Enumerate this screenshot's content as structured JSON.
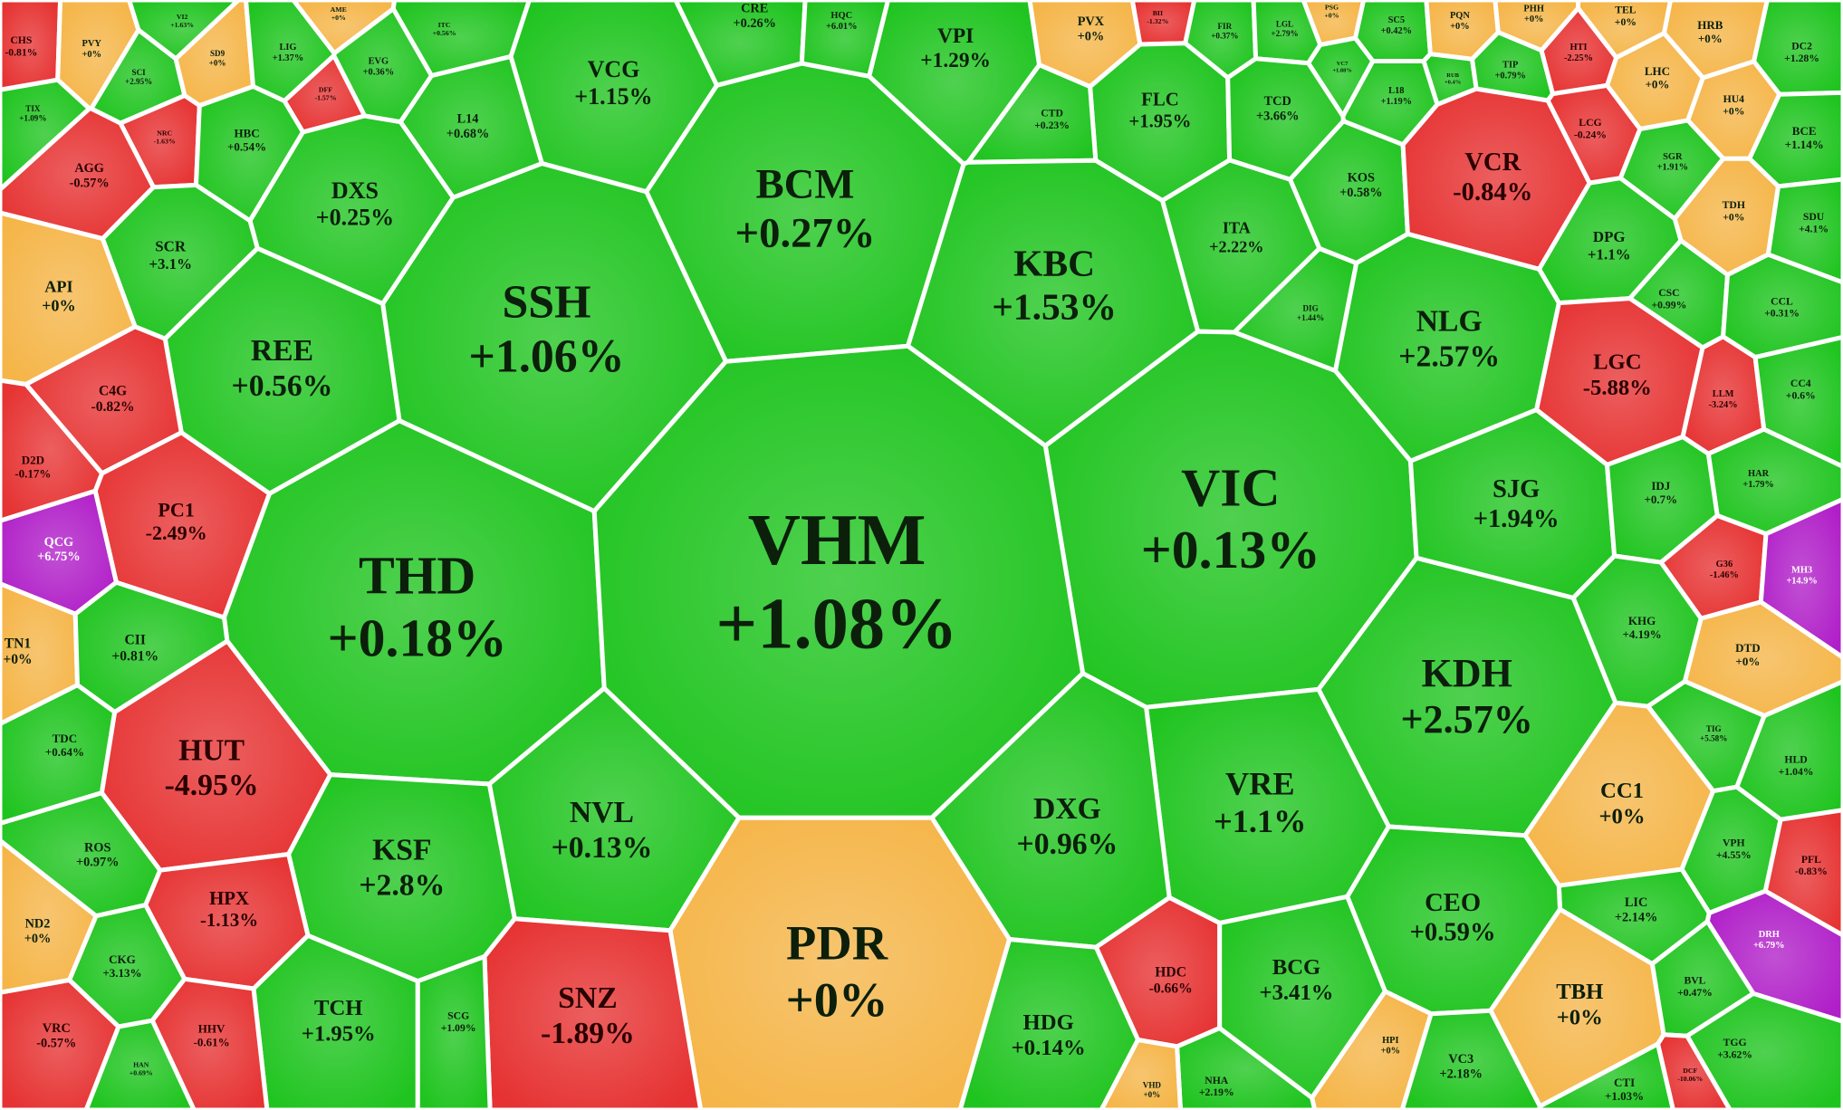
{
  "cells": [
    {
      "ticker": "CHS",
      "change": "-0.81%",
      "color": "#e63232"
    },
    {
      "ticker": "PVY",
      "change": "+0%",
      "color": "#f5b548"
    },
    {
      "ticker": "VI2",
      "change": "+1.63%",
      "color": "#1fc41f"
    },
    {
      "ticker": "AME",
      "change": "+0%",
      "color": "#f5b548"
    },
    {
      "ticker": "SCI",
      "change": "+2.95%",
      "color": "#1fc41f"
    },
    {
      "ticker": "SD9",
      "change": "+0%",
      "color": "#f5b548"
    },
    {
      "ticker": "LIG",
      "change": "+1.37%",
      "color": "#1fc41f"
    },
    {
      "ticker": "ITC",
      "change": "+0.56%",
      "color": "#1fc41f"
    },
    {
      "ticker": "EVG",
      "change": "+0.36%",
      "color": "#1fc41f"
    },
    {
      "ticker": "DFF",
      "change": "-1.57%",
      "color": "#e63232"
    },
    {
      "ticker": "TIX",
      "change": "+1.09%",
      "color": "#1fc41f"
    },
    {
      "ticker": "NRC",
      "change": "-1.63%",
      "color": "#e63232"
    },
    {
      "ticker": "HBC",
      "change": "+0.54%",
      "color": "#1fc41f"
    },
    {
      "ticker": "L14",
      "change": "+0.68%",
      "color": "#1fc41f"
    },
    {
      "ticker": "VCG",
      "change": "+1.15%",
      "color": "#1fc41f"
    },
    {
      "ticker": "CRE",
      "change": "+0.26%",
      "color": "#1fc41f"
    },
    {
      "ticker": "HQC",
      "change": "+6.01%",
      "color": "#1fc41f"
    },
    {
      "ticker": "VPI",
      "change": "+1.29%",
      "color": "#1fc41f"
    },
    {
      "ticker": "PVX",
      "change": "+0%",
      "color": "#f5b548"
    },
    {
      "ticker": "BII",
      "change": "-1.32%",
      "color": "#e63232"
    },
    {
      "ticker": "FIR",
      "change": "+0.37%",
      "color": "#1fc41f"
    },
    {
      "ticker": "LGL",
      "change": "+2.79%",
      "color": "#1fc41f"
    },
    {
      "ticker": "PSG",
      "change": "+0%",
      "color": "#f5b548"
    },
    {
      "ticker": "SC5",
      "change": "+0.42%",
      "color": "#1fc41f"
    },
    {
      "ticker": "PQN",
      "change": "+0%",
      "color": "#f5b548"
    },
    {
      "ticker": "PHH",
      "change": "+0%",
      "color": "#f5b548"
    },
    {
      "ticker": "TEL",
      "change": "+0%",
      "color": "#f5b548"
    },
    {
      "ticker": "HRB",
      "change": "+0%",
      "color": "#f5b548"
    },
    {
      "ticker": "DC2",
      "change": "+1.28%",
      "color": "#1fc41f"
    },
    {
      "ticker": "VC7",
      "change": "+1.88%",
      "color": "#1fc41f"
    },
    {
      "ticker": "RUB",
      "change": "+0.4%",
      "color": "#1fc41f"
    },
    {
      "ticker": "TIP",
      "change": "+0.79%",
      "color": "#1fc41f"
    },
    {
      "ticker": "HTI",
      "change": "-2.25%",
      "color": "#e63232"
    },
    {
      "ticker": "LHC",
      "change": "+0%",
      "color": "#f5b548"
    },
    {
      "ticker": "HU4",
      "change": "+0%",
      "color": "#f5b548"
    },
    {
      "ticker": "BCE",
      "change": "+1.14%",
      "color": "#1fc41f"
    },
    {
      "ticker": "L18",
      "change": "+1.19%",
      "color": "#1fc41f"
    },
    {
      "ticker": "FLC",
      "change": "+1.95%",
      "color": "#1fc41f"
    },
    {
      "ticker": "CTD",
      "change": "+0.23%",
      "color": "#1fc41f"
    },
    {
      "ticker": "TCD",
      "change": "+3.66%",
      "color": "#1fc41f"
    },
    {
      "ticker": "AGG",
      "change": "-0.57%",
      "color": "#e63232"
    },
    {
      "ticker": "DXS",
      "change": "+0.25%",
      "color": "#1fc41f"
    },
    {
      "ticker": "BCM",
      "change": "+0.27%",
      "color": "#1fc41f"
    },
    {
      "ticker": "KOS",
      "change": "+0.58%",
      "color": "#1fc41f"
    },
    {
      "ticker": "VCR",
      "change": "-0.84%",
      "color": "#e63232"
    },
    {
      "ticker": "LCG",
      "change": "-0.24%",
      "color": "#e63232"
    },
    {
      "ticker": "SGR",
      "change": "+1.91%",
      "color": "#1fc41f"
    },
    {
      "ticker": "TDH",
      "change": "+0%",
      "color": "#f5b548"
    },
    {
      "ticker": "SDU",
      "change": "+4.1%",
      "color": "#1fc41f"
    },
    {
      "ticker": "SCR",
      "change": "+3.1%",
      "color": "#1fc41f"
    },
    {
      "ticker": "ITA",
      "change": "+2.22%",
      "color": "#1fc41f"
    },
    {
      "ticker": "KBC",
      "change": "+1.53%",
      "color": "#1fc41f"
    },
    {
      "ticker": "DPG",
      "change": "+1.1%",
      "color": "#1fc41f"
    },
    {
      "ticker": "API",
      "change": "+0%",
      "color": "#f5b548"
    },
    {
      "ticker": "SSH",
      "change": "+1.06%",
      "color": "#1fc41f"
    },
    {
      "ticker": "DIG",
      "change": "+1.44%",
      "color": "#1fc41f"
    },
    {
      "ticker": "NLG",
      "change": "+2.57%",
      "color": "#1fc41f"
    },
    {
      "ticker": "CSC",
      "change": "+0.99%",
      "color": "#1fc41f"
    },
    {
      "ticker": "CCL",
      "change": "+0.31%",
      "color": "#1fc41f"
    },
    {
      "ticker": "REE",
      "change": "+0.56%",
      "color": "#1fc41f"
    },
    {
      "ticker": "C4G",
      "change": "-0.82%",
      "color": "#e63232"
    },
    {
      "ticker": "LGC",
      "change": "-5.88%",
      "color": "#e63232"
    },
    {
      "ticker": "LLM",
      "change": "-3.24%",
      "color": "#e63232"
    },
    {
      "ticker": "CC4",
      "change": "+0.6%",
      "color": "#1fc41f"
    },
    {
      "ticker": "D2D",
      "change": "-0.17%",
      "color": "#e63232"
    },
    {
      "ticker": "VIC",
      "change": "+0.13%",
      "color": "#1fc41f"
    },
    {
      "ticker": "SJG",
      "change": "+1.94%",
      "color": "#1fc41f"
    },
    {
      "ticker": "HAR",
      "change": "+1.79%",
      "color": "#1fc41f"
    },
    {
      "ticker": "IDJ",
      "change": "+0.7%",
      "color": "#1fc41f"
    },
    {
      "ticker": "PC1",
      "change": "-2.49%",
      "color": "#e63232"
    },
    {
      "ticker": "THD",
      "change": "+0.18%",
      "color": "#1fc41f"
    },
    {
      "ticker": "VHM",
      "change": "+1.08%",
      "color": "#1fc41f"
    },
    {
      "ticker": "QCG",
      "change": "+6.75%",
      "color": "#b01ec8"
    },
    {
      "ticker": "G36",
      "change": "-1.46%",
      "color": "#e63232"
    },
    {
      "ticker": "MH3",
      "change": "+14.9%",
      "color": "#b01ec8"
    },
    {
      "ticker": "KHG",
      "change": "+4.19%",
      "color": "#1fc41f"
    },
    {
      "ticker": "TN1",
      "change": "+0%",
      "color": "#f5b548"
    },
    {
      "ticker": "CII",
      "change": "+0.81%",
      "color": "#1fc41f"
    },
    {
      "ticker": "DTD",
      "change": "+0%",
      "color": "#f5b548"
    },
    {
      "ticker": "KDH",
      "change": "+2.57%",
      "color": "#1fc41f"
    },
    {
      "ticker": "TDC",
      "change": "+0.64%",
      "color": "#1fc41f"
    },
    {
      "ticker": "HUT",
      "change": "-4.95%",
      "color": "#e63232"
    },
    {
      "ticker": "TIG",
      "change": "+5.58%",
      "color": "#1fc41f"
    },
    {
      "ticker": "CC1",
      "change": "+0%",
      "color": "#f5b548"
    },
    {
      "ticker": "HLD",
      "change": "+1.04%",
      "color": "#1fc41f"
    },
    {
      "ticker": "VRE",
      "change": "+1.1%",
      "color": "#1fc41f"
    },
    {
      "ticker": "DXG",
      "change": "+0.96%",
      "color": "#1fc41f"
    },
    {
      "ticker": "NVL",
      "change": "+0.13%",
      "color": "#1fc41f"
    },
    {
      "ticker": "KSF",
      "change": "+2.8%",
      "color": "#1fc41f"
    },
    {
      "ticker": "ROS",
      "change": "+0.97%",
      "color": "#1fc41f"
    },
    {
      "ticker": "VPH",
      "change": "+4.55%",
      "color": "#1fc41f"
    },
    {
      "ticker": "PFL",
      "change": "-0.83%",
      "color": "#e63232"
    },
    {
      "ticker": "HPX",
      "change": "-1.13%",
      "color": "#e63232"
    },
    {
      "ticker": "LIC",
      "change": "+2.14%",
      "color": "#1fc41f"
    },
    {
      "ticker": "CEO",
      "change": "+0.59%",
      "color": "#1fc41f"
    },
    {
      "ticker": "ND2",
      "change": "+0%",
      "color": "#f5b548"
    },
    {
      "ticker": "PDR",
      "change": "+0%",
      "color": "#f5b548"
    },
    {
      "ticker": "DRH",
      "change": "+6.79%",
      "color": "#b01ec8"
    },
    {
      "ticker": "CKG",
      "change": "+3.13%",
      "color": "#1fc41f"
    },
    {
      "ticker": "HDC",
      "change": "-0.66%",
      "color": "#e63232"
    },
    {
      "ticker": "BCG",
      "change": "+3.41%",
      "color": "#1fc41f"
    },
    {
      "ticker": "BVL",
      "change": "+0.47%",
      "color": "#1fc41f"
    },
    {
      "ticker": "SNZ",
      "change": "-1.89%",
      "color": "#e63232"
    },
    {
      "ticker": "TCH",
      "change": "+1.95%",
      "color": "#1fc41f"
    },
    {
      "ticker": "SCG",
      "change": "+1.09%",
      "color": "#1fc41f"
    },
    {
      "ticker": "HHV",
      "change": "-0.61%",
      "color": "#e63232"
    },
    {
      "ticker": "HDG",
      "change": "+0.14%",
      "color": "#1fc41f"
    },
    {
      "ticker": "TBH",
      "change": "+0%",
      "color": "#f5b548"
    },
    {
      "ticker": "VRC",
      "change": "-0.57%",
      "color": "#e63232"
    },
    {
      "ticker": "HAN",
      "change": "+0.69%",
      "color": "#1fc41f"
    },
    {
      "ticker": "HPI",
      "change": "+0%",
      "color": "#f5b548"
    },
    {
      "ticker": "VC3",
      "change": "+2.18%",
      "color": "#1fc41f"
    },
    {
      "ticker": "TGG",
      "change": "+3.62%",
      "color": "#1fc41f"
    },
    {
      "ticker": "CTI",
      "change": "+1.03%",
      "color": "#1fc41f"
    },
    {
      "ticker": "DCF",
      "change": "-10.06%",
      "color": "#e63232"
    },
    {
      "ticker": "NHA",
      "change": "+2.19%",
      "color": "#1fc41f"
    },
    {
      "ticker": "VHD",
      "change": "+0%",
      "color": "#f5b548"
    }
  ]
}
